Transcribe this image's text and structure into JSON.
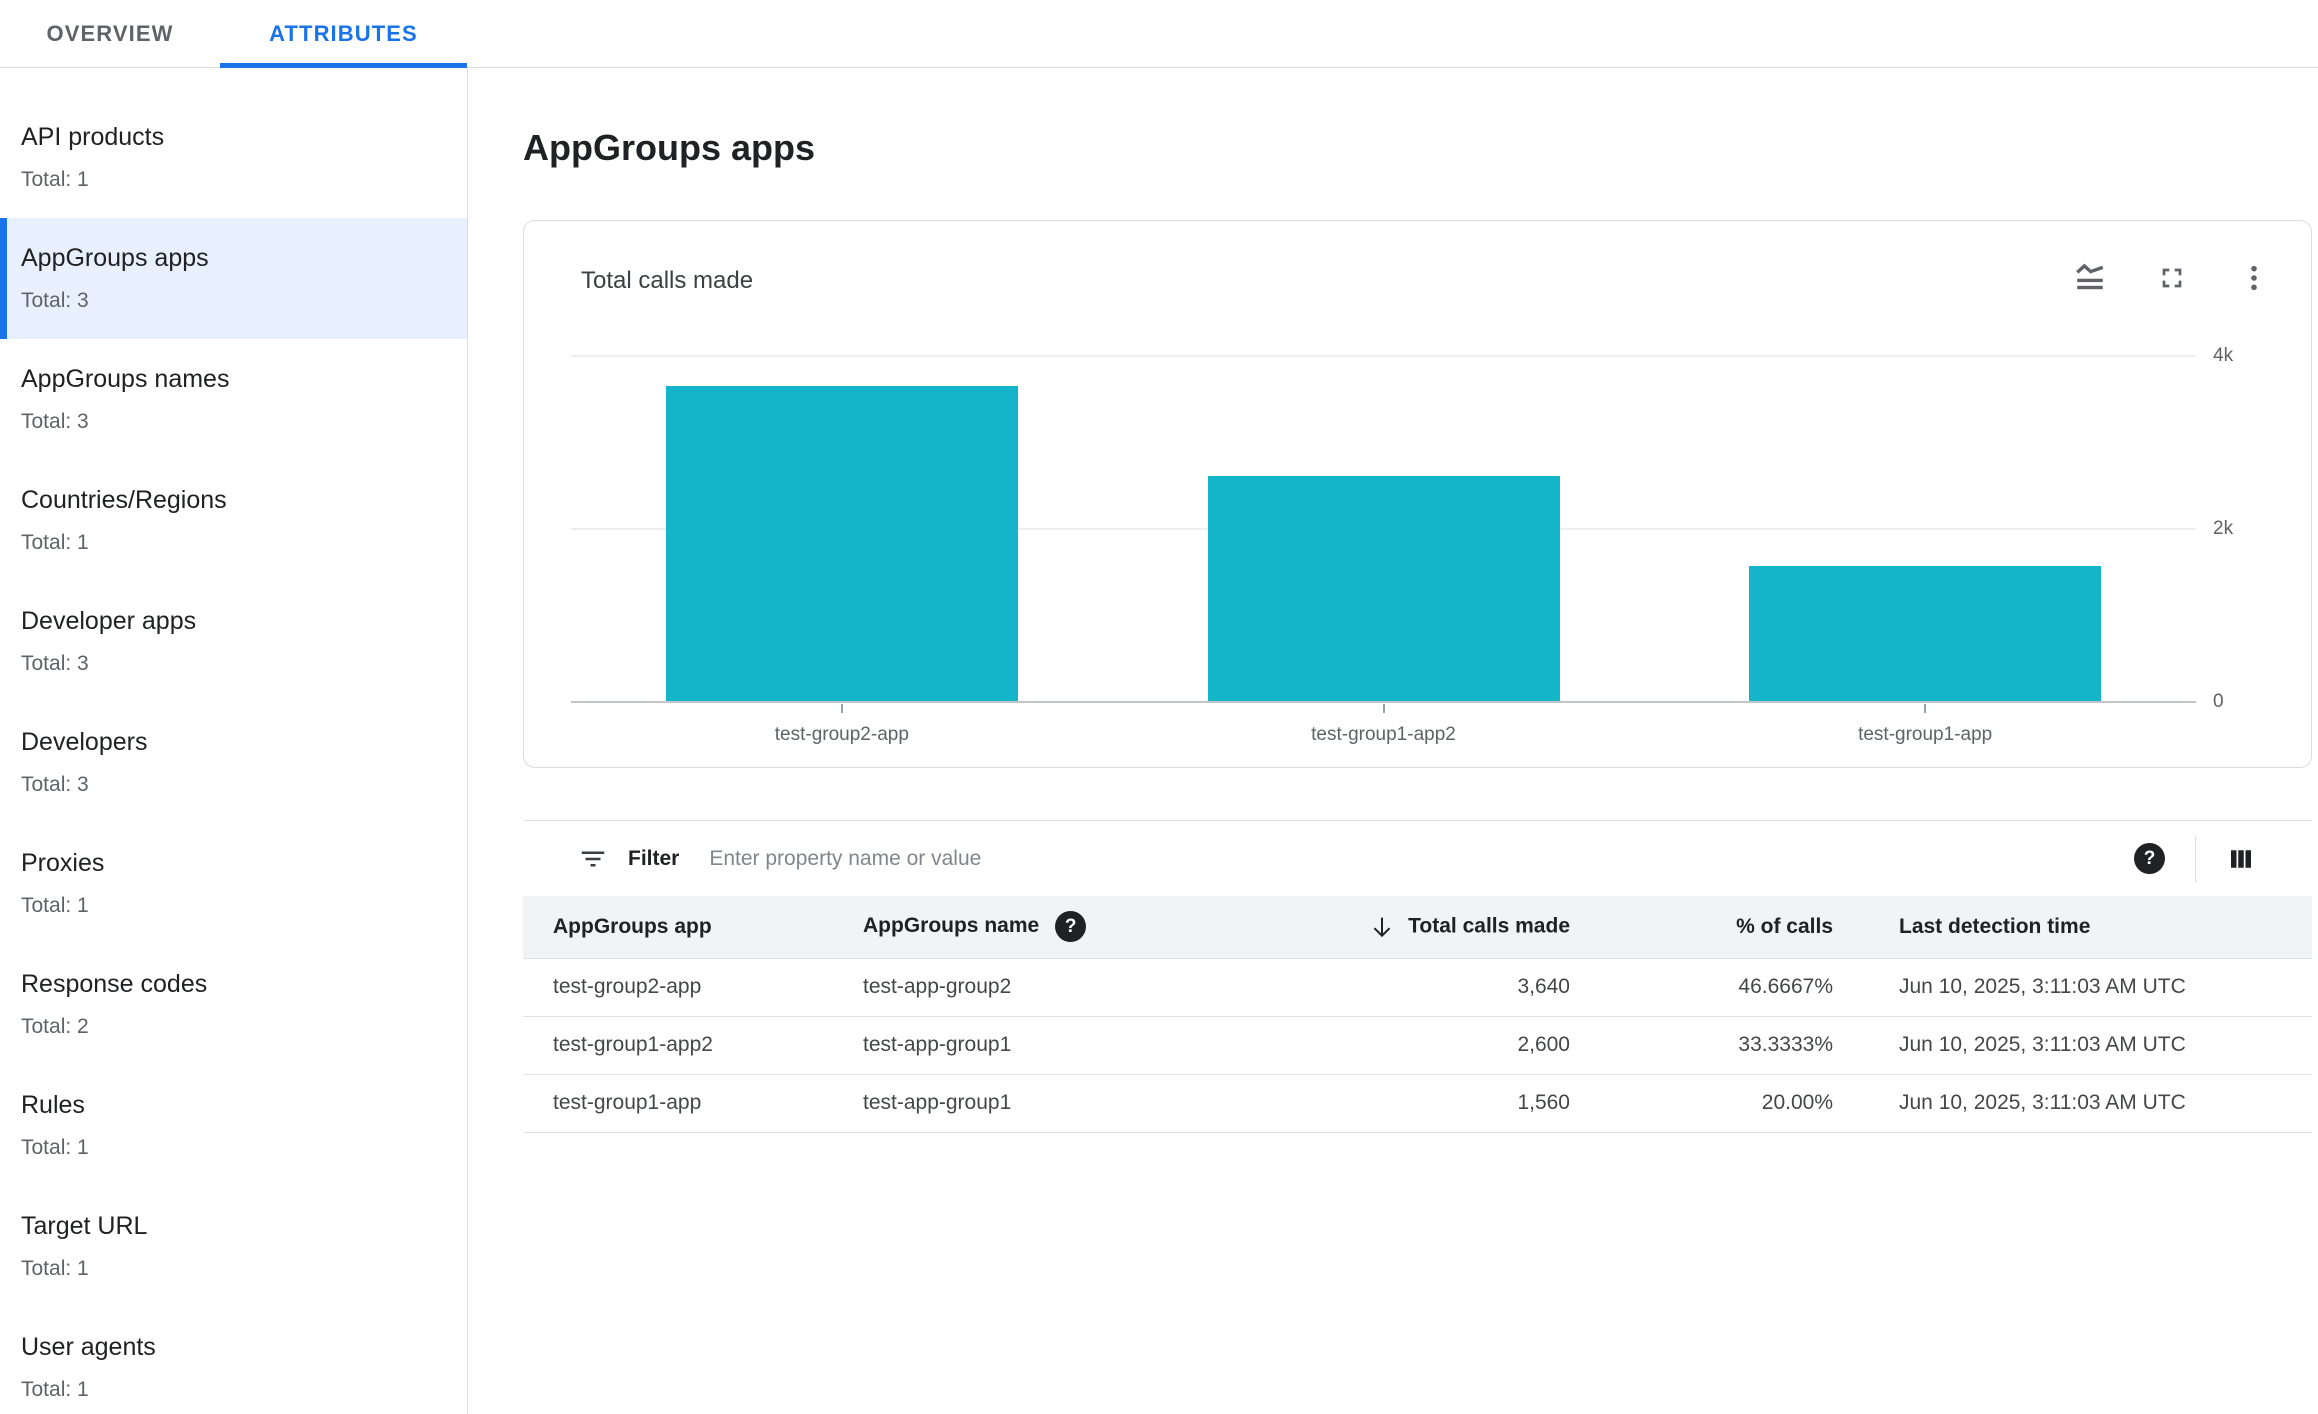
{
  "tabs": [
    {
      "label": "OVERVIEW",
      "active": false
    },
    {
      "label": "ATTRIBUTES",
      "active": true
    }
  ],
  "sidebar": {
    "items": [
      {
        "label": "API products",
        "total": "Total: 1",
        "selected": false
      },
      {
        "label": "AppGroups apps",
        "total": "Total: 3",
        "selected": true
      },
      {
        "label": "AppGroups names",
        "total": "Total: 3",
        "selected": false
      },
      {
        "label": "Countries/Regions",
        "total": "Total: 1",
        "selected": false
      },
      {
        "label": "Developer apps",
        "total": "Total: 3",
        "selected": false
      },
      {
        "label": "Developers",
        "total": "Total: 3",
        "selected": false
      },
      {
        "label": "Proxies",
        "total": "Total: 1",
        "selected": false
      },
      {
        "label": "Response codes",
        "total": "Total: 2",
        "selected": false
      },
      {
        "label": "Rules",
        "total": "Total: 1",
        "selected": false
      },
      {
        "label": "Target URL",
        "total": "Total: 1",
        "selected": false
      },
      {
        "label": "User agents",
        "total": "Total: 1",
        "selected": false
      }
    ]
  },
  "page": {
    "title": "AppGroups apps"
  },
  "chart_card": {
    "title": "Total calls made",
    "icons": [
      "chart-type-icon",
      "fullscreen-icon",
      "more-options-icon"
    ]
  },
  "chart_data": {
    "type": "bar",
    "title": "Total calls made",
    "categories": [
      "test-group2-app",
      "test-group1-app2",
      "test-group1-app"
    ],
    "values": [
      3640,
      2600,
      1560
    ],
    "xlabel": "",
    "ylabel": "",
    "ylim": [
      0,
      4000
    ],
    "yticks": [
      {
        "value": 0,
        "label": "0"
      },
      {
        "value": 2000,
        "label": "2k"
      },
      {
        "value": 4000,
        "label": "4k"
      }
    ],
    "y_axis_position": "right",
    "grid": "horizontal",
    "legend": "none",
    "bar_color": "#14b5c9"
  },
  "filter": {
    "label": "Filter",
    "placeholder": "Enter property name or value"
  },
  "table": {
    "columns": [
      {
        "label": "AppGroups app",
        "align": "left",
        "help_icon": false,
        "sort": null
      },
      {
        "label": "AppGroups name",
        "align": "left",
        "help_icon": true,
        "sort": null
      },
      {
        "label": "Total calls made",
        "align": "right",
        "help_icon": false,
        "sort": "desc"
      },
      {
        "label": "% of calls",
        "align": "right",
        "help_icon": false,
        "sort": null
      },
      {
        "label": "Last detection time",
        "align": "left",
        "help_icon": false,
        "sort": null
      }
    ],
    "rows": [
      [
        "test-group2-app",
        "test-app-group2",
        "3,640",
        "46.6667%",
        "Jun 10, 2025, 3:11:03 AM UTC"
      ],
      [
        "test-group1-app2",
        "test-app-group1",
        "2,600",
        "33.3333%",
        "Jun 10, 2025, 3:11:03 AM UTC"
      ],
      [
        "test-group1-app",
        "test-app-group1",
        "1,560",
        "20.00%",
        "Jun 10, 2025, 3:11:03 AM UTC"
      ]
    ]
  },
  "colors": {
    "accent": "#1a73e8",
    "selected_item_bg": "#e8f0fe",
    "bar": "#14b5c9",
    "header_row_bg": "#f1f3f4"
  }
}
